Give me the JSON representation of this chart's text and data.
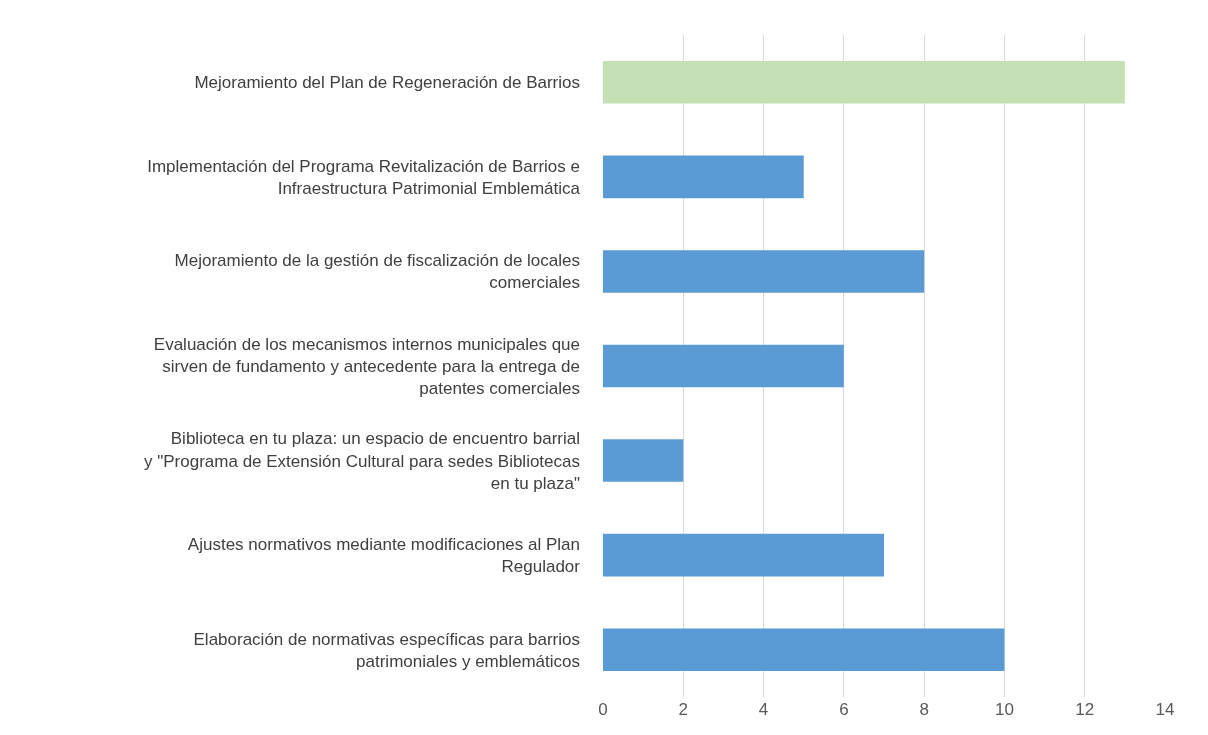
{
  "chart_data": {
    "type": "bar",
    "orientation": "horizontal",
    "categories": [
      "Mejoramiento del Plan de Regeneración de Barrios",
      "Implementación del Programa Revitalización de Barrios e Infraestructura Patrimonial Emblemática",
      "Mejoramiento de la gestión de fiscalización de locales comerciales",
      "Evaluación de los mecanismos internos municipales que sirven de fundamento y antecedente para la entrega de patentes comerciales",
      "Biblioteca en tu plaza: un espacio de encuentro barrial y \"Programa de Extensión Cultural para sedes Bibliotecas en tu plaza\"",
      "Ajustes normativos mediante modificaciones al Plan Regulador",
      "Elaboración de normativas específicas para barrios patrimoniales y emblemáticos"
    ],
    "values": [
      13,
      5,
      8,
      6,
      2,
      7,
      10
    ],
    "colors": [
      "#c5e0b4",
      "#5b9bd5",
      "#5b9bd5",
      "#5b9bd5",
      "#5b9bd5",
      "#5b9bd5",
      "#5b9bd5"
    ],
    "xlim": [
      0,
      14
    ],
    "xticks": [
      0,
      2,
      4,
      6,
      8,
      10,
      12,
      14
    ],
    "grid": "x",
    "legend": false
  }
}
